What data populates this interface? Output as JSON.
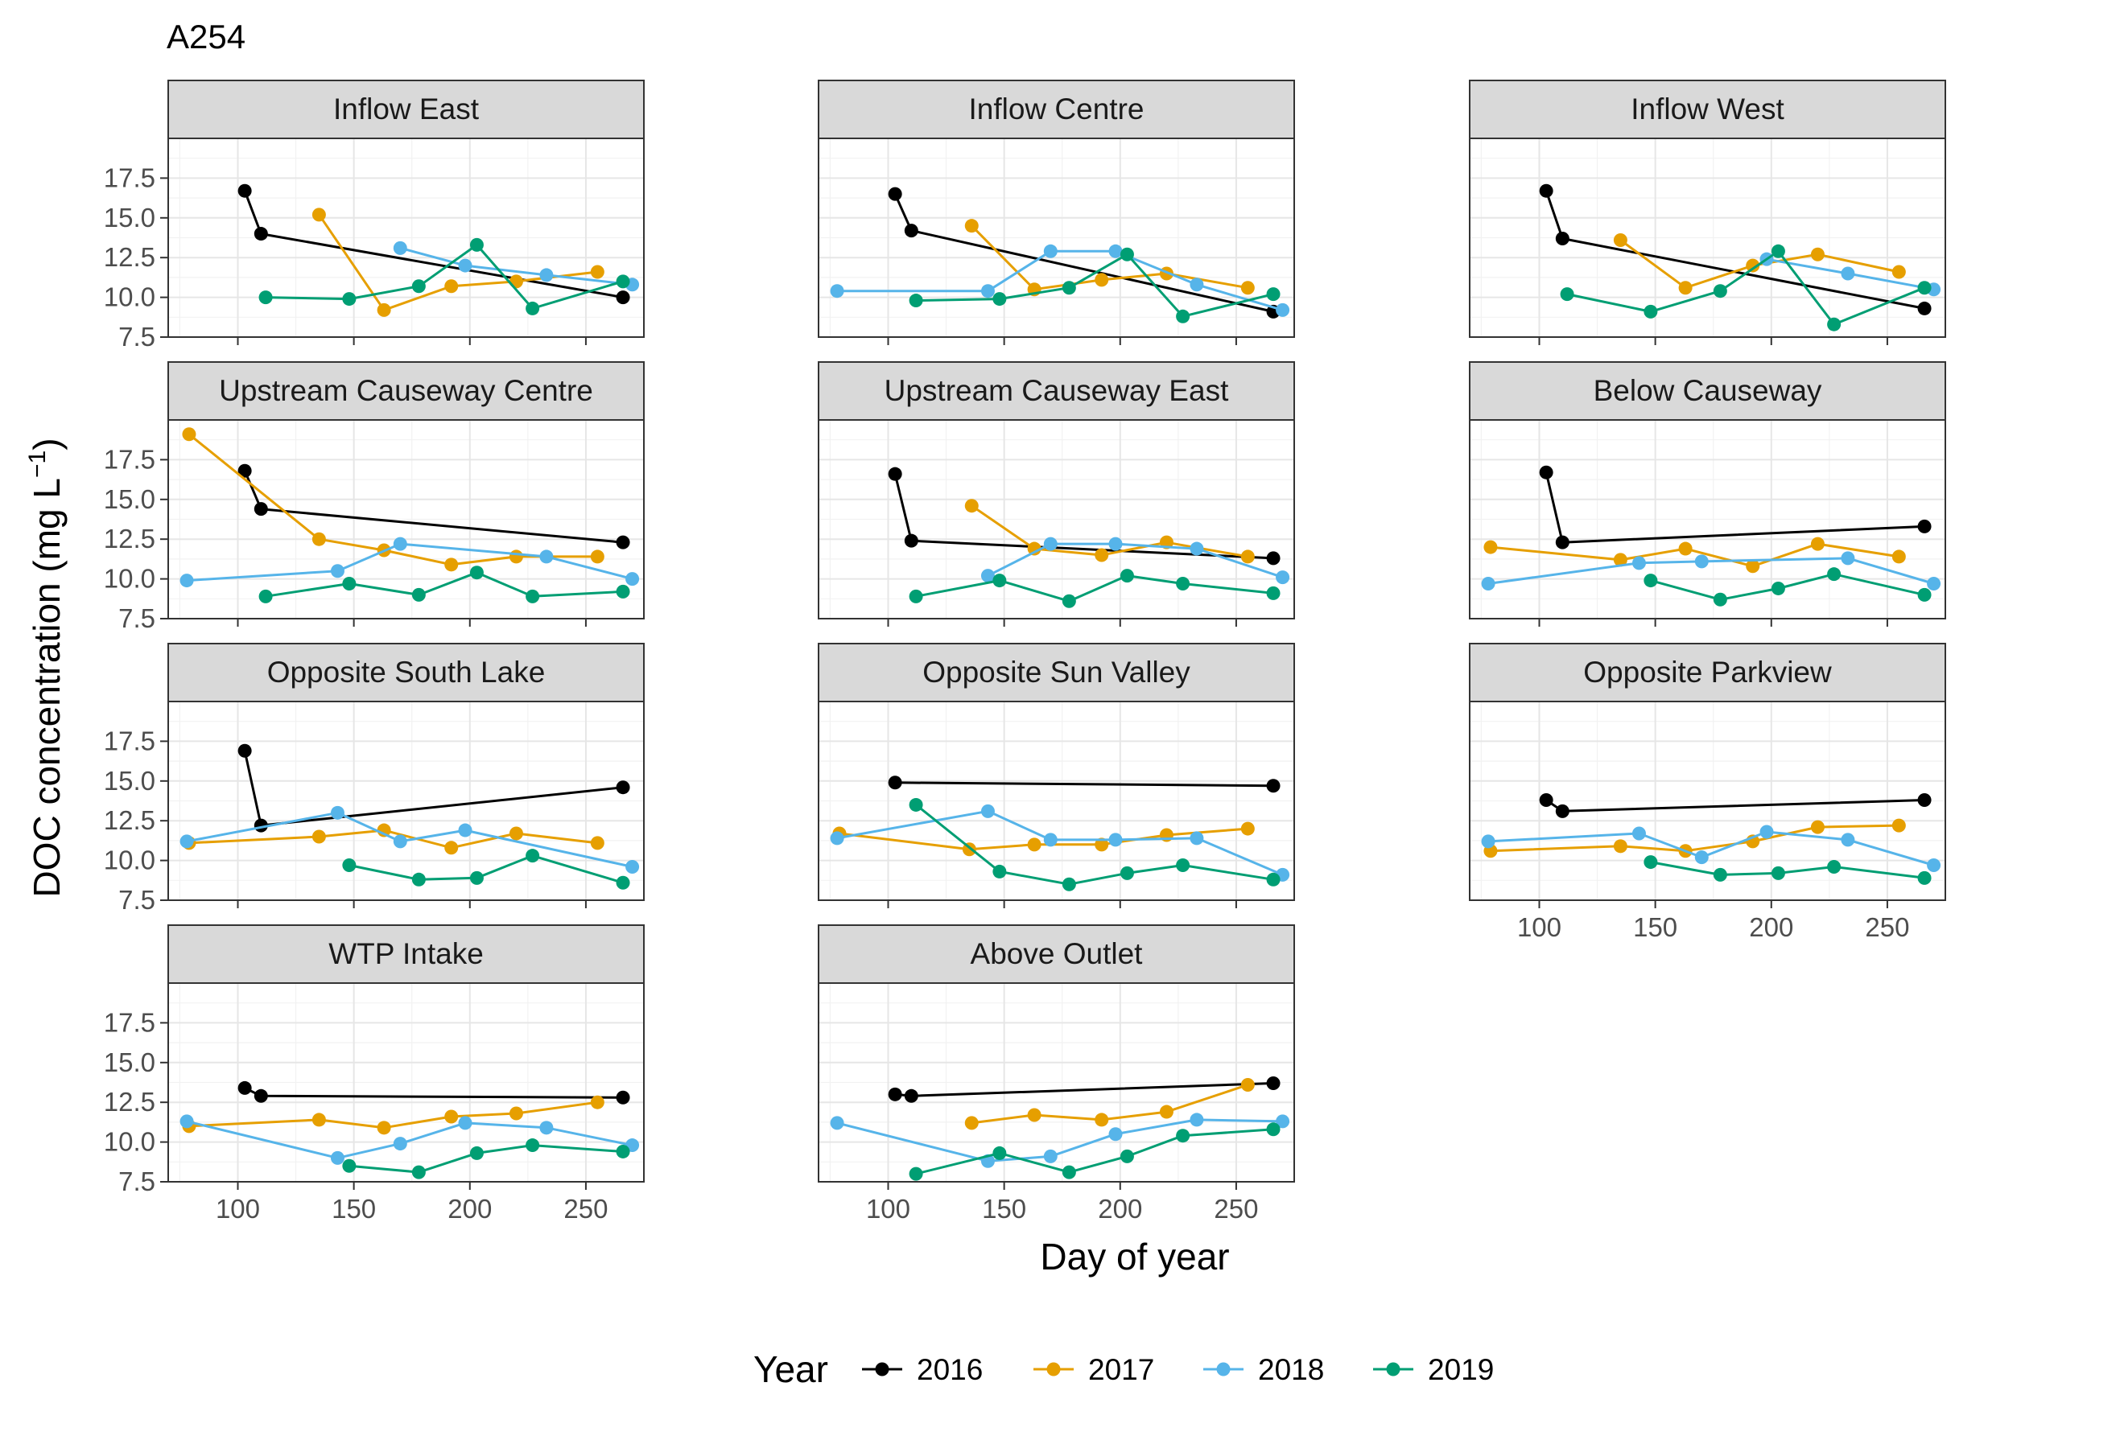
{
  "chart_data": {
    "type": "line",
    "title": "A254",
    "xlabel": "Day of year",
    "ylabel": "DOC concentration (mg L",
    "ylabel_superscript": "−1",
    "ylabel_suffix": ")",
    "xlim": [
      70,
      275
    ],
    "ylim": [
      7.5,
      20
    ],
    "x_ticks": [
      100,
      150,
      200,
      250
    ],
    "x_tick_labels": [
      "100",
      "150",
      "200",
      "250"
    ],
    "y_ticks": [
      7.5,
      10,
      12.5,
      15,
      17.5
    ],
    "y_tick_labels": [
      "7.5",
      "10.0",
      "12.5",
      "15.0",
      "17.5"
    ],
    "grid": true,
    "legend": {
      "title": "Year",
      "position": "bottom",
      "entries": [
        "2016",
        "2017",
        "2018",
        "2019"
      ]
    },
    "colors": {
      "2016": "#000000",
      "2017": "#E69F00",
      "2018": "#56B4E9",
      "2019": "#009E73"
    },
    "facets": [
      {
        "name": "Inflow East",
        "series": [
          {
            "name": "2016",
            "x": [
              103,
              110,
              266
            ],
            "y": [
              16.7,
              14.0,
              10.0
            ]
          },
          {
            "name": "2017",
            "x": [
              135,
              163,
              192,
              220,
              255
            ],
            "y": [
              15.2,
              9.2,
              10.7,
              11.0,
              11.6
            ]
          },
          {
            "name": "2018",
            "x": [
              170,
              198,
              233,
              270
            ],
            "y": [
              13.1,
              12.0,
              11.4,
              10.8
            ]
          },
          {
            "name": "2019",
            "x": [
              112,
              148,
              178,
              203,
              227,
              266
            ],
            "y": [
              10.0,
              9.9,
              10.7,
              13.3,
              9.3,
              11.0
            ]
          }
        ]
      },
      {
        "name": "Inflow Centre",
        "series": [
          {
            "name": "2016",
            "x": [
              103,
              110,
              266
            ],
            "y": [
              16.5,
              14.2,
              9.1
            ]
          },
          {
            "name": "2017",
            "x": [
              136,
              163,
              192,
              220,
              255
            ],
            "y": [
              14.5,
              10.5,
              11.1,
              11.5,
              10.6
            ]
          },
          {
            "name": "2018",
            "x": [
              78,
              143,
              170,
              198,
              233,
              270
            ],
            "y": [
              10.4,
              10.4,
              12.9,
              12.9,
              10.8,
              9.2
            ]
          },
          {
            "name": "2019",
            "x": [
              112,
              148,
              178,
              203,
              227,
              266
            ],
            "y": [
              9.8,
              9.9,
              10.6,
              12.7,
              8.8,
              10.2
            ]
          }
        ]
      },
      {
        "name": "Inflow West",
        "series": [
          {
            "name": "2016",
            "x": [
              103,
              110,
              266
            ],
            "y": [
              16.7,
              13.7,
              9.3
            ]
          },
          {
            "name": "2017",
            "x": [
              135,
              163,
              192,
              220,
              255
            ],
            "y": [
              13.6,
              10.6,
              12.0,
              12.7,
              11.6
            ]
          },
          {
            "name": "2018",
            "x": [
              198,
              233,
              270
            ],
            "y": [
              12.4,
              11.5,
              10.5
            ]
          },
          {
            "name": "2019",
            "x": [
              112,
              148,
              178,
              203,
              227,
              266
            ],
            "y": [
              10.2,
              9.1,
              10.4,
              12.9,
              8.3,
              10.6
            ]
          }
        ]
      },
      {
        "name": "Upstream Causeway Centre",
        "series": [
          {
            "name": "2016",
            "x": [
              103,
              110,
              266
            ],
            "y": [
              16.8,
              14.4,
              12.3
            ]
          },
          {
            "name": "2017",
            "x": [
              79,
              135,
              163,
              192,
              220,
              255
            ],
            "y": [
              19.1,
              12.5,
              11.8,
              10.9,
              11.4,
              11.4
            ]
          },
          {
            "name": "2018",
            "x": [
              78,
              143,
              170,
              233,
              270
            ],
            "y": [
              9.9,
              10.5,
              12.2,
              11.4,
              10.0
            ]
          },
          {
            "name": "2019",
            "x": [
              112,
              148,
              178,
              203,
              227,
              266
            ],
            "y": [
              8.9,
              9.7,
              9.0,
              10.4,
              8.9,
              9.2
            ]
          }
        ]
      },
      {
        "name": "Upstream Causeway East",
        "series": [
          {
            "name": "2016",
            "x": [
              103,
              110,
              266
            ],
            "y": [
              16.6,
              12.4,
              11.3
            ]
          },
          {
            "name": "2017",
            "x": [
              136,
              163,
              192,
              220,
              255
            ],
            "y": [
              14.6,
              11.9,
              11.5,
              12.3,
              11.4
            ]
          },
          {
            "name": "2018",
            "x": [
              143,
              170,
              198,
              233,
              270
            ],
            "y": [
              10.2,
              12.2,
              12.2,
              11.9,
              10.1
            ]
          },
          {
            "name": "2019",
            "x": [
              112,
              148,
              178,
              203,
              227,
              266
            ],
            "y": [
              8.9,
              9.9,
              8.6,
              10.2,
              9.7,
              9.1
            ]
          }
        ]
      },
      {
        "name": "Below Causeway",
        "series": [
          {
            "name": "2016",
            "x": [
              103,
              110,
              266
            ],
            "y": [
              16.7,
              12.3,
              13.3
            ]
          },
          {
            "name": "2017",
            "x": [
              79,
              135,
              163,
              192,
              220,
              255
            ],
            "y": [
              12.0,
              11.2,
              11.9,
              10.8,
              12.2,
              11.4
            ]
          },
          {
            "name": "2018",
            "x": [
              78,
              143,
              170,
              233,
              270
            ],
            "y": [
              9.7,
              11.0,
              11.1,
              11.3,
              9.7
            ]
          },
          {
            "name": "2019",
            "x": [
              148,
              178,
              203,
              227,
              266
            ],
            "y": [
              9.9,
              8.7,
              9.4,
              10.3,
              9.0
            ]
          }
        ]
      },
      {
        "name": "Opposite South Lake",
        "series": [
          {
            "name": "2016",
            "x": [
              103,
              110,
              266
            ],
            "y": [
              16.9,
              12.2,
              14.6
            ]
          },
          {
            "name": "2017",
            "x": [
              79,
              135,
              163,
              192,
              220,
              255
            ],
            "y": [
              11.1,
              11.5,
              11.9,
              10.8,
              11.7,
              11.1
            ]
          },
          {
            "name": "2018",
            "x": [
              78,
              143,
              170,
              198,
              270
            ],
            "y": [
              11.2,
              13.0,
              11.2,
              11.9,
              9.6
            ]
          },
          {
            "name": "2019",
            "x": [
              148,
              178,
              203,
              227,
              266
            ],
            "y": [
              9.7,
              8.8,
              8.9,
              10.3,
              8.6
            ]
          }
        ]
      },
      {
        "name": "Opposite Sun Valley",
        "series": [
          {
            "name": "2016",
            "x": [
              103,
              266
            ],
            "y": [
              14.9,
              14.7
            ]
          },
          {
            "name": "2017",
            "x": [
              79,
              135,
              163,
              192,
              220,
              255
            ],
            "y": [
              11.7,
              10.7,
              11.0,
              11.0,
              11.6,
              12.0
            ]
          },
          {
            "name": "2018",
            "x": [
              78,
              143,
              170,
              198,
              233,
              270
            ],
            "y": [
              11.4,
              13.1,
              11.3,
              11.3,
              11.4,
              9.1
            ]
          },
          {
            "name": "2019",
            "x": [
              112,
              148,
              178,
              203,
              227,
              266
            ],
            "y": [
              13.5,
              9.3,
              8.5,
              9.2,
              9.7,
              8.8
            ]
          }
        ]
      },
      {
        "name": "Opposite Parkview",
        "series": [
          {
            "name": "2016",
            "x": [
              103,
              110,
              266
            ],
            "y": [
              13.8,
              13.1,
              13.8
            ]
          },
          {
            "name": "2017",
            "x": [
              79,
              135,
              163,
              192,
              220,
              255
            ],
            "y": [
              10.6,
              10.9,
              10.6,
              11.2,
              12.1,
              12.2
            ]
          },
          {
            "name": "2018",
            "x": [
              78,
              143,
              170,
              198,
              233,
              270
            ],
            "y": [
              11.2,
              11.7,
              10.2,
              11.8,
              11.3,
              9.7
            ]
          },
          {
            "name": "2019",
            "x": [
              148,
              178,
              203,
              227,
              266
            ],
            "y": [
              9.9,
              9.1,
              9.2,
              9.6,
              8.9
            ]
          }
        ]
      },
      {
        "name": "WTP Intake",
        "series": [
          {
            "name": "2016",
            "x": [
              103,
              110,
              266
            ],
            "y": [
              13.4,
              12.9,
              12.8
            ]
          },
          {
            "name": "2017",
            "x": [
              79,
              135,
              163,
              192,
              220,
              255
            ],
            "y": [
              11.0,
              11.4,
              10.9,
              11.6,
              11.8,
              12.5
            ]
          },
          {
            "name": "2018",
            "x": [
              78,
              143,
              170,
              198,
              233,
              270
            ],
            "y": [
              11.3,
              9.0,
              9.9,
              11.2,
              10.9,
              9.8
            ]
          },
          {
            "name": "2019",
            "x": [
              148,
              178,
              203,
              227,
              266
            ],
            "y": [
              8.5,
              8.1,
              9.3,
              9.8,
              9.4
            ]
          }
        ]
      },
      {
        "name": "Above Outlet",
        "series": [
          {
            "name": "2016",
            "x": [
              103,
              110,
              266
            ],
            "y": [
              13.0,
              12.9,
              13.7
            ]
          },
          {
            "name": "2017",
            "x": [
              136,
              163,
              192,
              220,
              255
            ],
            "y": [
              11.2,
              11.7,
              11.4,
              11.9,
              13.6
            ]
          },
          {
            "name": "2018",
            "x": [
              78,
              143,
              170,
              198,
              233,
              270
            ],
            "y": [
              11.2,
              8.8,
              9.1,
              10.5,
              11.4,
              11.3
            ]
          },
          {
            "name": "2019",
            "x": [
              112,
              148,
              178,
              203,
              227,
              266
            ],
            "y": [
              8.0,
              9.3,
              8.1,
              9.1,
              10.4,
              10.8
            ]
          }
        ]
      }
    ]
  }
}
